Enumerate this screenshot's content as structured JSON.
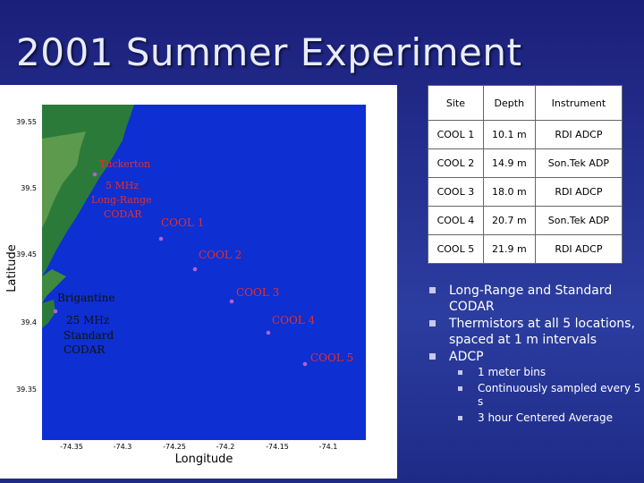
{
  "slide": {
    "title": "2001 Summer Experiment"
  },
  "map": {
    "xlabel": "Longitude",
    "ylabel": "Latitude",
    "lat_ticks": [
      "39.55",
      "39.5",
      "39.45",
      "39.4",
      "39.35"
    ],
    "lon_ticks": [
      "-74.35",
      "-74.3",
      "-74.25",
      "-74.2",
      "-74.15",
      "-74.1"
    ],
    "tuckerton": {
      "name": "Tuckerton",
      "line1": "5 MHz",
      "line2": "Long-Range",
      "line3": "CODAR"
    },
    "brigantine": {
      "name": "Brigantine",
      "line1": "25 MHz",
      "line2": "Standard",
      "line3": "CODAR"
    },
    "sites": [
      "COOL 1",
      "COOL 2",
      "COOL 3",
      "COOL 4",
      "COOL 5"
    ],
    "colors": {
      "ocean": "#0e2fd2",
      "land": "#2c7a3a",
      "marker": "#b060d8",
      "label": "#e03030"
    }
  },
  "table": {
    "headers": [
      "Site",
      "Depth",
      "Instrument"
    ],
    "rows": [
      [
        "COOL 1",
        "10.1 m",
        "RDI ADCP"
      ],
      [
        "COOL 2",
        "14.9 m",
        "Son.Tek ADP"
      ],
      [
        "COOL 3",
        "18.0 m",
        "RDI ADCP"
      ],
      [
        "COOL 4",
        "20.7 m",
        "Son.Tek ADP"
      ],
      [
        "COOL 5",
        "21.9 m",
        "RDI ADCP"
      ]
    ]
  },
  "bullets": {
    "items": [
      "Long-Range  and Standard CODAR",
      "Thermistors at all 5 locations, spaced at 1 m intervals",
      "ADCP"
    ],
    "sub_items": [
      "1 meter bins",
      "Continuously sampled every 5 s",
      "3 hour Centered Average"
    ]
  }
}
